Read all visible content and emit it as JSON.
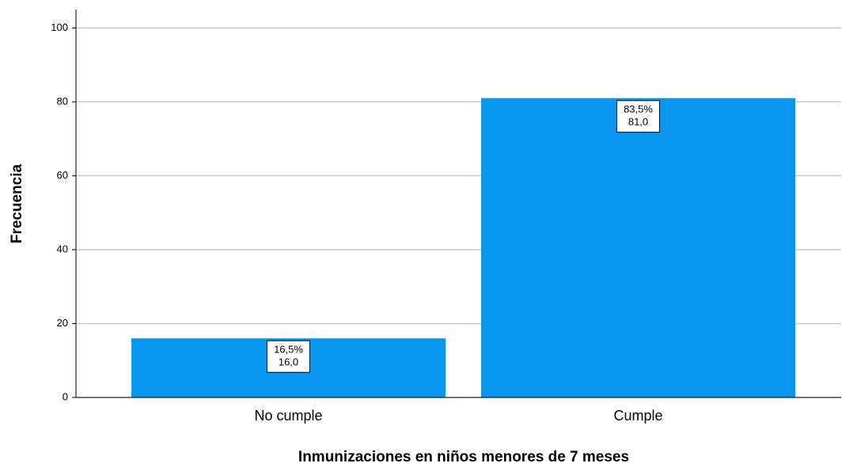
{
  "chart_data": {
    "type": "bar",
    "x_label": "Inmunizaciones en niños menores de 7 meses",
    "y_label": "Frecuencia",
    "categories": [
      "No cumple",
      "Cumple"
    ],
    "values": [
      16,
      81
    ],
    "value_labels": [
      "16,0",
      "81,0"
    ],
    "percent_labels": [
      "16,5%",
      "83,5%"
    ],
    "color": "#0896ef",
    "ylim": [
      0,
      105
    ],
    "yticks": [
      0,
      20,
      40,
      60,
      80,
      100
    ],
    "grid": true
  }
}
